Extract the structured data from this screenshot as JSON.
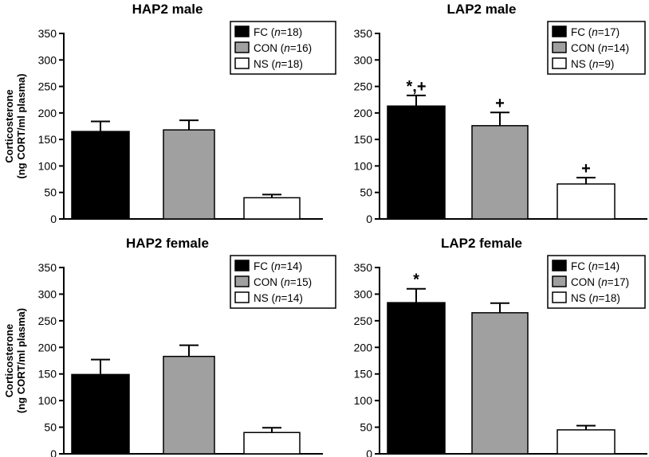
{
  "y_axis_label_line1": "Corticosterone",
  "y_axis_label_line2": "(ng CORT/ml plasma)",
  "chart_data": [
    {
      "type": "bar",
      "title": "HAP2 male",
      "categories": [
        "FC",
        "CON",
        "NS"
      ],
      "values": [
        165,
        168,
        40
      ],
      "errors": [
        19,
        18,
        6
      ],
      "colors": [
        "#000000",
        "#a0a0a0",
        "#ffffff"
      ],
      "ylim": [
        0,
        350
      ],
      "yticks": [
        0,
        50,
        100,
        150,
        200,
        250,
        300,
        350
      ],
      "legend_entries": [
        {
          "group": "FC",
          "n_label": "n",
          "n_value": "=18)"
        },
        {
          "group": "CON",
          "n_label": "n",
          "n_value": "=16)"
        },
        {
          "group": "NS",
          "n_label": "n",
          "n_value": "=18)"
        }
      ],
      "annotations": [
        "",
        "",
        ""
      ],
      "legend_position": "top-right",
      "ylabel": "Corticosterone (ng CORT/ml plasma)"
    },
    {
      "type": "bar",
      "title": "LAP2 male",
      "categories": [
        "FC",
        "CON",
        "NS"
      ],
      "values": [
        213,
        176,
        66
      ],
      "errors": [
        20,
        25,
        12
      ],
      "colors": [
        "#000000",
        "#a0a0a0",
        "#ffffff"
      ],
      "ylim": [
        0,
        350
      ],
      "yticks": [
        0,
        50,
        100,
        150,
        200,
        250,
        300,
        350
      ],
      "legend_entries": [
        {
          "group": "FC",
          "n_label": "n",
          "n_value": "=17)"
        },
        {
          "group": "CON",
          "n_label": "n",
          "n_value": "=14)"
        },
        {
          "group": "NS",
          "n_label": "n",
          "n_value": "=9)"
        }
      ],
      "annotations": [
        "*,+",
        "+",
        "+"
      ],
      "legend_position": "top-right",
      "ylabel": ""
    },
    {
      "type": "bar",
      "title": "HAP2 female",
      "categories": [
        "FC",
        "CON",
        "NS"
      ],
      "values": [
        149,
        183,
        40
      ],
      "errors": [
        28,
        21,
        9
      ],
      "colors": [
        "#000000",
        "#a0a0a0",
        "#ffffff"
      ],
      "ylim": [
        0,
        350
      ],
      "yticks": [
        0,
        50,
        100,
        150,
        200,
        250,
        300,
        350
      ],
      "legend_entries": [
        {
          "group": "FC",
          "n_label": "n",
          "n_value": "=14)"
        },
        {
          "group": "CON",
          "n_label": "n",
          "n_value": "=15)"
        },
        {
          "group": "NS",
          "n_label": "n",
          "n_value": "=14)"
        }
      ],
      "annotations": [
        "",
        "",
        ""
      ],
      "legend_position": "top-right",
      "ylabel": "Corticosterone (ng CORT/ml plasma)"
    },
    {
      "type": "bar",
      "title": "LAP2 female",
      "categories": [
        "FC",
        "CON",
        "NS"
      ],
      "values": [
        284,
        265,
        45
      ],
      "errors": [
        26,
        18,
        8
      ],
      "colors": [
        "#000000",
        "#a0a0a0",
        "#ffffff"
      ],
      "ylim": [
        0,
        350
      ],
      "yticks": [
        0,
        50,
        100,
        150,
        200,
        250,
        300,
        350
      ],
      "legend_entries": [
        {
          "group": "FC",
          "n_label": "n",
          "n_value": "=14)"
        },
        {
          "group": "CON",
          "n_label": "n",
          "n_value": "=17)"
        },
        {
          "group": "NS",
          "n_label": "n",
          "n_value": "=18)"
        }
      ],
      "annotations": [
        "*",
        "",
        ""
      ],
      "legend_position": "top-right",
      "ylabel": ""
    }
  ]
}
